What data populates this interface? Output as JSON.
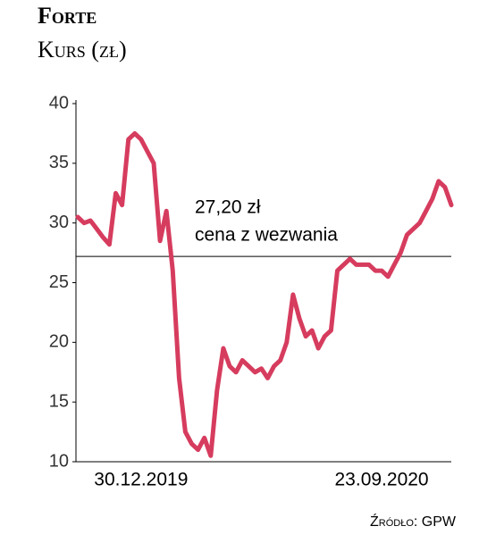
{
  "chart_data": {
    "type": "line",
    "title": "Forte",
    "subtitle": "Kurs (zł)",
    "source": "Źródło: GPW",
    "categories": [
      null,
      null,
      null,
      null,
      null,
      null,
      null,
      null,
      null,
      null,
      "30.12.2019",
      null,
      null,
      null,
      null,
      null,
      null,
      null,
      null,
      null,
      null,
      null,
      null,
      null,
      null,
      null,
      null,
      null,
      null,
      null,
      null,
      null,
      null,
      null,
      null,
      null,
      null,
      null,
      null,
      null,
      null,
      null,
      null,
      null,
      null,
      null,
      null,
      null,
      "23.09.2020",
      null,
      null,
      null,
      null,
      null,
      null,
      null,
      null,
      null,
      null,
      null
    ],
    "series": [
      {
        "name": "Forte",
        "color": "#d63c5e",
        "values": [
          30.5,
          30,
          30.2,
          29.5,
          28.8,
          28.2,
          32.5,
          31.5,
          37,
          37.5,
          37,
          36,
          35,
          28.5,
          31,
          26,
          17,
          12.5,
          11.5,
          11,
          12,
          10.5,
          16,
          19.5,
          18,
          17.5,
          18.5,
          18,
          17.5,
          17.8,
          17,
          18,
          18.5,
          20,
          24,
          22,
          20.5,
          21,
          19.5,
          20.5,
          21,
          26,
          26.5,
          27,
          26.5,
          26.5,
          26.5,
          26,
          26,
          25.5,
          26.5,
          27.5,
          29,
          29.5,
          30,
          31,
          32,
          33.5,
          33,
          31.5
        ]
      }
    ],
    "reference_line": {
      "value": 27.2,
      "label": "27,20 zł",
      "note": "cena z wezwania"
    },
    "ylim": [
      10,
      40
    ],
    "yticks": [
      10,
      15,
      20,
      25,
      30,
      35,
      40
    ],
    "grid": false
  }
}
